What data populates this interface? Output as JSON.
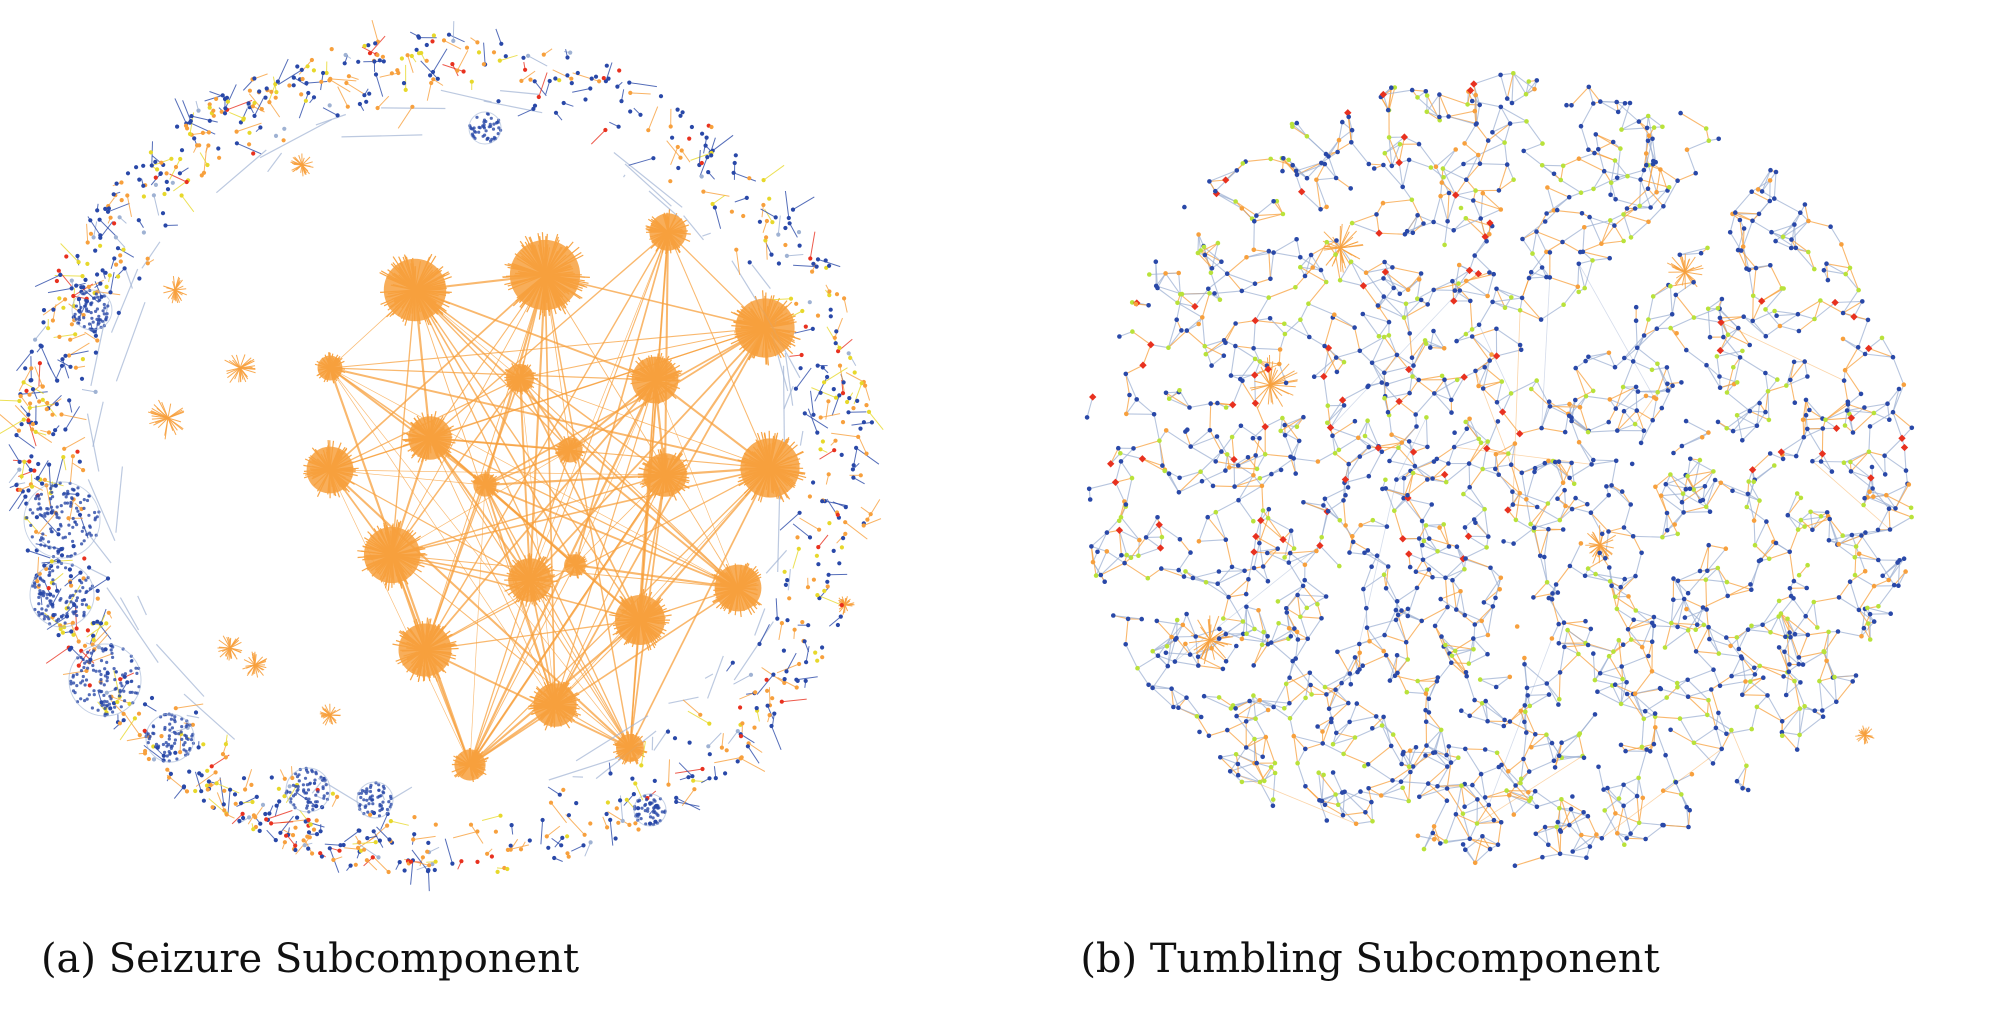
{
  "figures": [
    {
      "id": "a",
      "caption": "(a) Seizure Subcomponent",
      "style": "hubs",
      "colors": {
        "orange": "#f7a03d",
        "blue": "#2948a8",
        "light_blue": "#9fb2d3",
        "red": "#e8311f",
        "yellow": "#e7d82b",
        "hub": "#f7a03d"
      }
    },
    {
      "id": "b",
      "caption": "(b) Tumbling Subcomponent",
      "style": "mesh",
      "colors": {
        "orange": "#f7a03d",
        "blue": "#2948a8",
        "light_blue": "#9fb2d3",
        "red": "#e8311f",
        "green": "#b9e23a"
      }
    }
  ]
}
